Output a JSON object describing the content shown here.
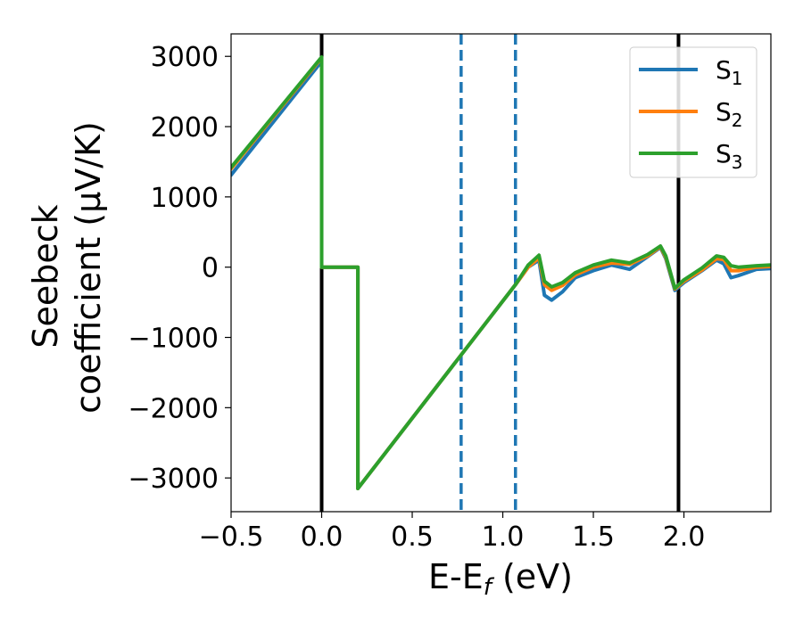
{
  "chart_data": {
    "type": "line",
    "title": "",
    "xlabel": "E-E",
    "xlabel_sub": "f",
    "xlabel_unit": " (eV)",
    "ylabel_line1": "Seebeck",
    "ylabel_line2": "coefficient  (μV/K)",
    "xlim": [
      -0.5,
      2.48
    ],
    "ylim": [
      -3480,
      3320
    ],
    "x_ticks": [
      -0.5,
      0.0,
      0.5,
      1.0,
      1.5,
      2.0
    ],
    "x_tick_labels": [
      "−0.5",
      "0.0",
      "0.5",
      "1.0",
      "1.5",
      "2.0"
    ],
    "y_ticks": [
      3000,
      2000,
      1000,
      0,
      -1000,
      -2000,
      -3000
    ],
    "y_tick_labels": [
      "3000",
      "2000",
      "1000",
      "0",
      "−1000",
      "−2000",
      "−3000"
    ],
    "grid": false,
    "legend_position": "top-right",
    "vertical_lines": [
      {
        "x": 0.0,
        "style": "solid",
        "color": "#000000"
      },
      {
        "x": 1.97,
        "style": "solid",
        "color": "#000000"
      },
      {
        "x": 0.77,
        "style": "dashed",
        "color": "#1f77b4"
      },
      {
        "x": 1.07,
        "style": "dashed",
        "color": "#1f77b4"
      }
    ],
    "series": [
      {
        "name": "S",
        "sub": "1",
        "color": "#1f77b4",
        "x": [
          -0.5,
          0.0,
          0.0,
          0.2,
          0.2,
          1.07,
          1.14,
          1.2,
          1.23,
          1.27,
          1.33,
          1.4,
          1.5,
          1.6,
          1.7,
          1.8,
          1.87,
          1.9,
          1.95,
          2.0,
          2.1,
          2.18,
          2.22,
          2.26,
          2.3,
          2.4,
          2.48
        ],
        "y": [
          1310,
          2930,
          0,
          0,
          -3150,
          -250,
          0,
          100,
          -400,
          -470,
          -350,
          -150,
          -50,
          30,
          -30,
          150,
          280,
          120,
          -330,
          -220,
          -50,
          100,
          50,
          -150,
          -120,
          -30,
          -20
        ]
      },
      {
        "name": "S",
        "sub": "2",
        "color": "#ff7f0e",
        "x": [
          -0.5,
          0.0,
          0.0,
          0.2,
          0.2,
          1.07,
          1.14,
          1.2,
          1.23,
          1.27,
          1.33,
          1.4,
          1.5,
          1.6,
          1.7,
          1.8,
          1.87,
          1.9,
          1.95,
          2.0,
          2.1,
          2.18,
          2.22,
          2.26,
          2.3,
          2.4,
          2.48
        ],
        "y": [
          1400,
          2980,
          0,
          0,
          -3150,
          -250,
          0,
          130,
          -250,
          -330,
          -260,
          -110,
          0,
          60,
          40,
          160,
          290,
          140,
          -310,
          -200,
          -40,
          120,
          110,
          -50,
          -50,
          0,
          10
        ]
      },
      {
        "name": "S",
        "sub": "3",
        "color": "#2ca02c",
        "x": [
          -0.5,
          0.0,
          0.0,
          0.2,
          0.2,
          1.07,
          1.14,
          1.2,
          1.23,
          1.27,
          1.33,
          1.4,
          1.5,
          1.6,
          1.7,
          1.8,
          1.87,
          1.9,
          1.95,
          2.0,
          2.1,
          2.18,
          2.22,
          2.26,
          2.3,
          2.4,
          2.48
        ],
        "y": [
          1420,
          2990,
          0,
          0,
          -3150,
          -250,
          30,
          170,
          -200,
          -280,
          -220,
          -80,
          30,
          100,
          60,
          180,
          300,
          160,
          -300,
          -180,
          -10,
          160,
          140,
          20,
          0,
          20,
          30
        ]
      }
    ]
  }
}
